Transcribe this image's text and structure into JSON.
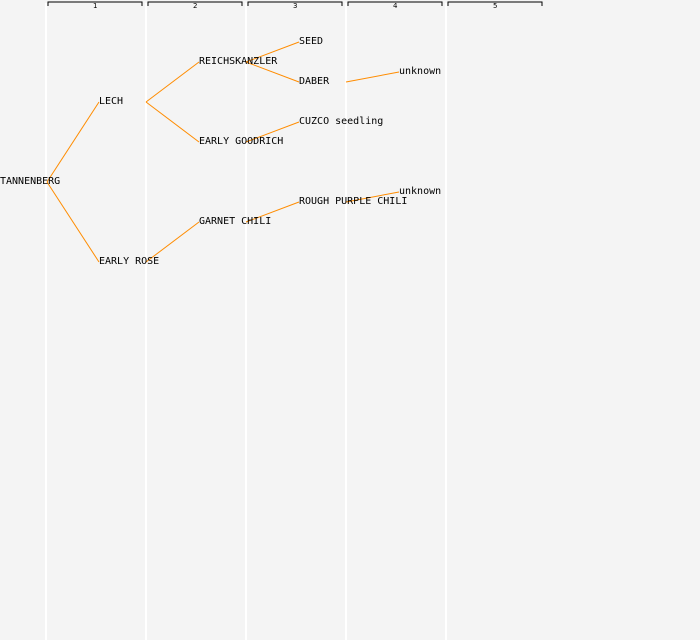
{
  "generations": [
    "1",
    "2",
    "3",
    "4",
    "5"
  ],
  "colors": {
    "background": "#f4f4f4",
    "edge": "#ff8c00",
    "column_line": "#ffffff",
    "bracket": "#000000",
    "text": "#000000"
  },
  "tree": {
    "root": "tannenberg",
    "nodes": [
      {
        "id": "tannenberg",
        "label": "TANNENBERG",
        "generation": 0,
        "children": [
          "lech",
          "early-rose"
        ]
      },
      {
        "id": "lech",
        "label": "LECH",
        "generation": 1,
        "children": [
          "reichskanzler",
          "early-goodrich"
        ]
      },
      {
        "id": "early-rose",
        "label": "EARLY ROSE",
        "generation": 1,
        "children": [
          "garnet-chili"
        ]
      },
      {
        "id": "reichskanzler",
        "label": "REICHSKANZLER",
        "generation": 2,
        "children": [
          "seed",
          "daber"
        ]
      },
      {
        "id": "early-goodrich",
        "label": "EARLY GOODRICH",
        "generation": 2,
        "children": [
          "cuzco-seedling"
        ]
      },
      {
        "id": "garnet-chili",
        "label": "GARNET CHILI",
        "generation": 2,
        "children": [
          "rough-purple-chili"
        ]
      },
      {
        "id": "seed",
        "label": "SEED",
        "generation": 3,
        "children": []
      },
      {
        "id": "daber",
        "label": "DABER",
        "generation": 3,
        "children": [
          "unknown-1"
        ]
      },
      {
        "id": "cuzco-seedling",
        "label": "CUZCO seedling",
        "generation": 3,
        "children": []
      },
      {
        "id": "rough-purple-chili",
        "label": "ROUGH PURPLE CHILI",
        "generation": 3,
        "children": [
          "unknown-2"
        ]
      },
      {
        "id": "unknown-1",
        "label": "unknown",
        "generation": 4,
        "children": []
      },
      {
        "id": "unknown-2",
        "label": "unknown",
        "generation": 4,
        "children": []
      }
    ]
  }
}
